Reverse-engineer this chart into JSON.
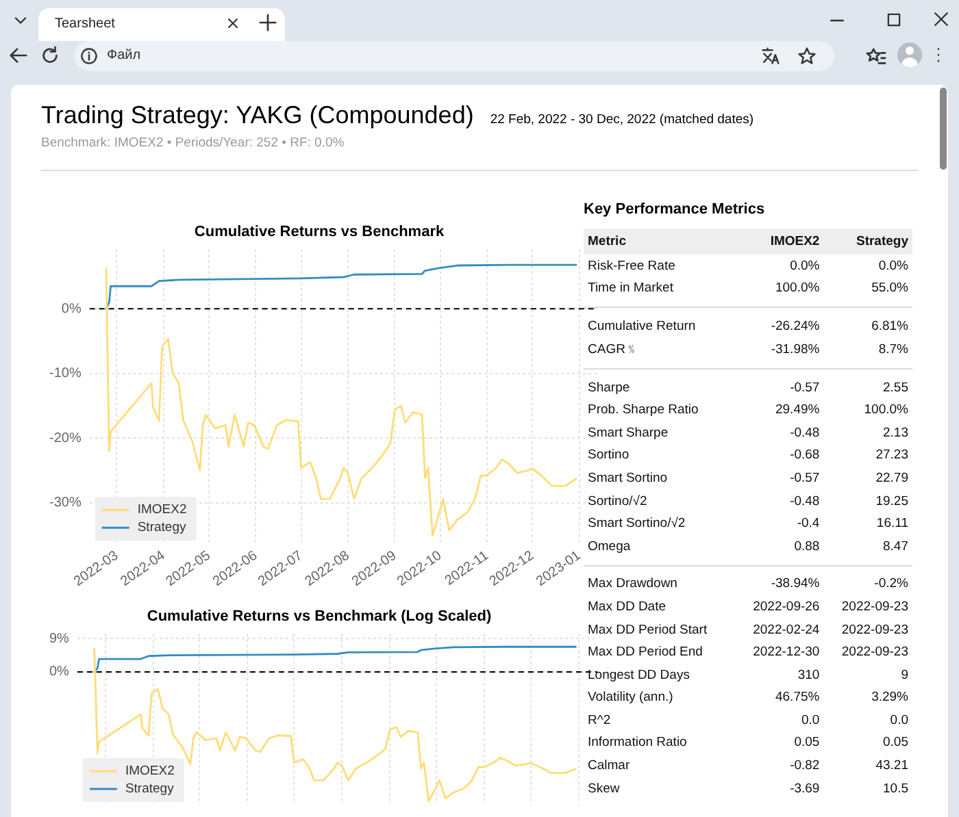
{
  "chart_data": [
    {
      "type": "other",
      "title": "Trading Strategy: YAKG (Compounded)",
      "subtitle": "22 Feb, 2022 - 30 Dec, 2022 (matched dates)",
      "annotations": [
        "Benchmark: IMOEX2 • Periods/Year: 252 • RF: 0.0%",
        "Tearsheet",
        "Файл"
      ]
    },
    {
      "type": "line",
      "title": "Cumulative Returns vs Benchmark",
      "xlim": [
        "2022-02-11",
        "2023-01-13"
      ],
      "xticks": [
        "2022-03",
        "2022-04",
        "2022-05",
        "2022-06",
        "2022-07",
        "2022-08",
        "2022-09",
        "2022-10",
        "2022-11",
        "2022-12",
        "2023-01"
      ],
      "ylim": [
        -36.3,
        9.2
      ],
      "yticks": [
        {
          "value": 0,
          "label": "0%"
        },
        {
          "value": -10,
          "label": "-10%"
        },
        {
          "value": -20,
          "label": "-20%"
        },
        {
          "value": -30,
          "label": "-30%"
        }
      ],
      "grid": true,
      "legend": "bottom left",
      "ref_lines": [
        {
          "axis": "y",
          "value": 0,
          "color": "#000000",
          "line_style": "dashed"
        }
      ],
      "series": [
        {
          "name": "IMOEX2",
          "color": "#fedd78",
          "x": [
            "2022-02-22",
            "2022-02-24",
            "2022-02-25",
            "2022-03-24",
            "2022-03-25",
            "2022-03-29",
            "2022-03-31",
            "2022-04-04",
            "2022-04-07",
            "2022-04-11",
            "2022-04-14",
            "2022-04-20",
            "2022-04-25",
            "2022-04-27",
            "2022-04-29",
            "2022-05-05",
            "2022-05-12",
            "2022-05-14",
            "2022-05-18",
            "2022-05-24",
            "2022-05-27",
            "2022-05-31",
            "2022-06-06",
            "2022-06-09",
            "2022-06-15",
            "2022-06-21",
            "2022-06-29",
            "2022-07-01",
            "2022-07-07",
            "2022-07-11",
            "2022-07-14",
            "2022-07-20",
            "2022-07-27",
            "2022-07-29",
            "2022-08-01",
            "2022-08-05",
            "2022-08-10",
            "2022-08-17",
            "2022-08-23",
            "2022-08-29",
            "2022-09-01",
            "2022-09-05",
            "2022-09-08",
            "2022-09-13",
            "2022-09-19",
            "2022-09-21",
            "2022-09-23",
            "2022-09-26",
            "2022-09-30",
            "2022-10-03",
            "2022-10-07",
            "2022-10-12",
            "2022-10-19",
            "2022-10-24",
            "2022-10-28",
            "2022-11-01",
            "2022-11-07",
            "2022-11-11",
            "2022-11-16",
            "2022-11-21",
            "2022-11-28",
            "2022-12-01",
            "2022-12-07",
            "2022-12-14",
            "2022-12-23",
            "2022-12-30"
          ],
          "values": [
            6.3,
            -22,
            -19,
            -11.5,
            -15.2,
            -17.3,
            -5.9,
            -4.6,
            -9.9,
            -11.5,
            -17.2,
            -20.5,
            -25,
            -18,
            -16.4,
            -18.5,
            -18,
            -21.3,
            -16.4,
            -21.3,
            -17.6,
            -18,
            -21.3,
            -21.7,
            -18,
            -17.2,
            -17.4,
            -24.6,
            -23.7,
            -26.2,
            -29.4,
            -29.4,
            -26.2,
            -24.6,
            -25.4,
            -29.4,
            -26.2,
            -24.6,
            -22.9,
            -20.9,
            -15.6,
            -15,
            -17.6,
            -16,
            -16.4,
            -26.2,
            -24.6,
            -35.1,
            -31.9,
            -29.4,
            -34.3,
            -32.7,
            -31.5,
            -29.4,
            -25.8,
            -25.8,
            -24.6,
            -23.3,
            -24.1,
            -25.4,
            -25,
            -24.7,
            -25.8,
            -27.4,
            -27.4,
            -26.3
          ]
        },
        {
          "name": "Strategy",
          "color": "#348dc1",
          "x": [
            "2022-02-22",
            "2022-02-24",
            "2022-02-25",
            "2022-03-24",
            "2022-03-29",
            "2022-04-12",
            "2022-06-30",
            "2022-07-29",
            "2022-08-05",
            "2022-09-19",
            "2022-09-21",
            "2022-09-30",
            "2022-10-12",
            "2022-11-15",
            "2022-12-30"
          ],
          "values": [
            0,
            1,
            3.5,
            3.5,
            4.3,
            4.5,
            4.7,
            4.9,
            5.3,
            5.4,
            5.9,
            6.3,
            6.7,
            6.8,
            6.8
          ]
        }
      ]
    },
    {
      "type": "line",
      "title": "Cumulative Returns vs Benchmark (Log Scaled)",
      "xlim": [
        "2022-02-11",
        "2023-01-13"
      ],
      "xticks": [
        "2022-03",
        "2022-04",
        "2022-05",
        "2022-06",
        "2022-07",
        "2022-08",
        "2022-09",
        "2022-10",
        "2022-11",
        "2022-12",
        "2023-01"
      ],
      "ylim": [
        -36,
        10.3
      ],
      "yticks": [
        {
          "value": 9,
          "label": "9%"
        },
        {
          "value": 0,
          "label": "0%"
        }
      ],
      "grid": true,
      "tick_labels": "y",
      "legend": "bottom left",
      "ref_lines": [
        {
          "axis": "y",
          "value": 0,
          "color": "#000000",
          "line_style": "dashed"
        }
      ],
      "series": [
        {
          "name": "IMOEX2",
          "color": "#fedd78",
          "x": [
            "2022-02-22",
            "2022-02-24",
            "2022-02-25",
            "2022-03-24",
            "2022-03-25",
            "2022-03-29",
            "2022-03-31",
            "2022-04-04",
            "2022-04-07",
            "2022-04-11",
            "2022-04-14",
            "2022-04-20",
            "2022-04-25",
            "2022-04-27",
            "2022-04-29",
            "2022-05-05",
            "2022-05-12",
            "2022-05-14",
            "2022-05-18",
            "2022-05-24",
            "2022-05-27",
            "2022-05-31",
            "2022-06-06",
            "2022-06-09",
            "2022-06-15",
            "2022-06-21",
            "2022-06-29",
            "2022-07-01",
            "2022-07-07",
            "2022-07-11",
            "2022-07-14",
            "2022-07-20",
            "2022-07-27",
            "2022-07-29",
            "2022-08-01",
            "2022-08-05",
            "2022-08-10",
            "2022-08-17",
            "2022-08-23",
            "2022-08-29",
            "2022-09-01",
            "2022-09-05",
            "2022-09-08",
            "2022-09-13",
            "2022-09-19",
            "2022-09-21",
            "2022-09-23",
            "2022-09-26",
            "2022-09-30",
            "2022-10-03",
            "2022-10-07",
            "2022-10-12",
            "2022-10-19",
            "2022-10-24",
            "2022-10-28",
            "2022-11-01",
            "2022-11-07",
            "2022-11-11",
            "2022-11-16",
            "2022-11-21",
            "2022-11-28",
            "2022-12-01",
            "2022-12-07",
            "2022-12-14",
            "2022-12-23",
            "2022-12-30"
          ],
          "values": [
            6.3,
            -22,
            -19,
            -11.5,
            -15.2,
            -17.3,
            -5.9,
            -4.6,
            -9.9,
            -11.5,
            -17.2,
            -20.5,
            -25,
            -18,
            -16.4,
            -18.5,
            -18,
            -21.3,
            -16.4,
            -21.3,
            -17.6,
            -18,
            -21.3,
            -21.7,
            -18,
            -17.2,
            -17.4,
            -24.6,
            -23.7,
            -26.2,
            -29.4,
            -29.4,
            -26.2,
            -24.6,
            -25.4,
            -29.4,
            -26.2,
            -24.6,
            -22.9,
            -20.9,
            -15.6,
            -15,
            -17.6,
            -16,
            -16.4,
            -26.2,
            -24.6,
            -35.1,
            -31.9,
            -29.4,
            -34.3,
            -32.7,
            -31.5,
            -29.4,
            -25.8,
            -25.8,
            -24.6,
            -23.3,
            -24.1,
            -25.4,
            -25,
            -24.7,
            -25.8,
            -27.4,
            -27.4,
            -26.3
          ]
        },
        {
          "name": "Strategy",
          "color": "#348dc1",
          "x": [
            "2022-02-22",
            "2022-02-24",
            "2022-02-25",
            "2022-03-24",
            "2022-03-29",
            "2022-04-12",
            "2022-06-30",
            "2022-07-29",
            "2022-08-05",
            "2022-09-19",
            "2022-09-21",
            "2022-09-30",
            "2022-10-12",
            "2022-11-15",
            "2022-12-30"
          ],
          "values": [
            0,
            1,
            3.5,
            3.5,
            4.3,
            4.5,
            4.7,
            4.9,
            5.3,
            5.4,
            5.9,
            6.3,
            6.7,
            6.8,
            6.8
          ]
        }
      ]
    },
    {
      "type": "other",
      "title": "Key Performance Metrics",
      "ylabel": "Metric",
      "categories": [
        "Risk-Free Rate",
        "Time in Market",
        null,
        "Cumulative Return",
        "CAGR﹪",
        null,
        "Sharpe",
        "Prob. Sharpe Ratio",
        "Smart Sharpe",
        "Sortino",
        "Smart Sortino",
        "Sortino/√2",
        "Smart Sortino/√2",
        "Omega",
        null,
        "Max Drawdown",
        "Max DD Date",
        "Max DD Period Start",
        "Max DD Period End",
        "Longest DD Days",
        "Volatility (ann.)",
        "R^2",
        "Information Ratio",
        "Calmar",
        "Skew"
      ],
      "series": [
        {
          "name": "IMOEX2",
          "values": [
            0.0,
            100.0,
            null,
            -26.24,
            -31.98,
            null,
            -0.57,
            29.49,
            -0.48,
            -0.68,
            -0.57,
            -0.48,
            -0.4,
            0.88,
            null,
            -38.94,
            null,
            null,
            null,
            310,
            46.75,
            0.0,
            0.05,
            -0.82,
            -3.69
          ],
          "value_labels": [
            "0.0%",
            "100.0%",
            null,
            "-26.24%",
            "-31.98%",
            null,
            "-0.57",
            "29.49%",
            "-0.48",
            "-0.68",
            "-0.57",
            "-0.48",
            "-0.4",
            "0.88",
            null,
            "-38.94%",
            "2022-09-26",
            "2022-02-24",
            "2022-12-30",
            "310",
            "46.75%",
            "0.0",
            "0.05",
            "-0.82",
            "-3.69"
          ]
        },
        {
          "name": "Strategy",
          "values": [
            0.0,
            55.0,
            null,
            6.81,
            8.7,
            null,
            2.55,
            100.0,
            2.13,
            27.23,
            22.79,
            19.25,
            16.11,
            8.47,
            null,
            -0.2,
            null,
            null,
            null,
            9,
            3.29,
            0.0,
            0.05,
            43.21,
            10.5
          ],
          "value_labels": [
            "0.0%",
            "55.0%",
            null,
            "6.81%",
            "8.7%",
            null,
            "2.55",
            "100.0%",
            "2.13",
            "27.23",
            "22.79",
            "19.25",
            "16.11",
            "8.47",
            null,
            "-0.2%",
            "2022-09-23",
            "2022-09-23",
            "2022-09-23",
            "9",
            "3.29%",
            "0.0",
            "0.05",
            "43.21",
            "10.5"
          ]
        }
      ]
    }
  ]
}
